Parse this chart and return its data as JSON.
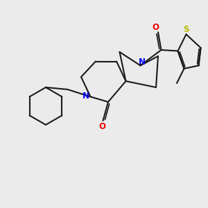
{
  "background_color": "#ebebeb",
  "bond_color": "#1a1a1a",
  "N_color": "#0000ee",
  "O_color": "#ee0000",
  "S_color": "#bbbb00",
  "line_width": 1.5,
  "figsize": [
    3.0,
    3.0
  ],
  "dpi": 100,
  "xlim": [
    0,
    10
  ],
  "ylim": [
    0,
    10
  ]
}
